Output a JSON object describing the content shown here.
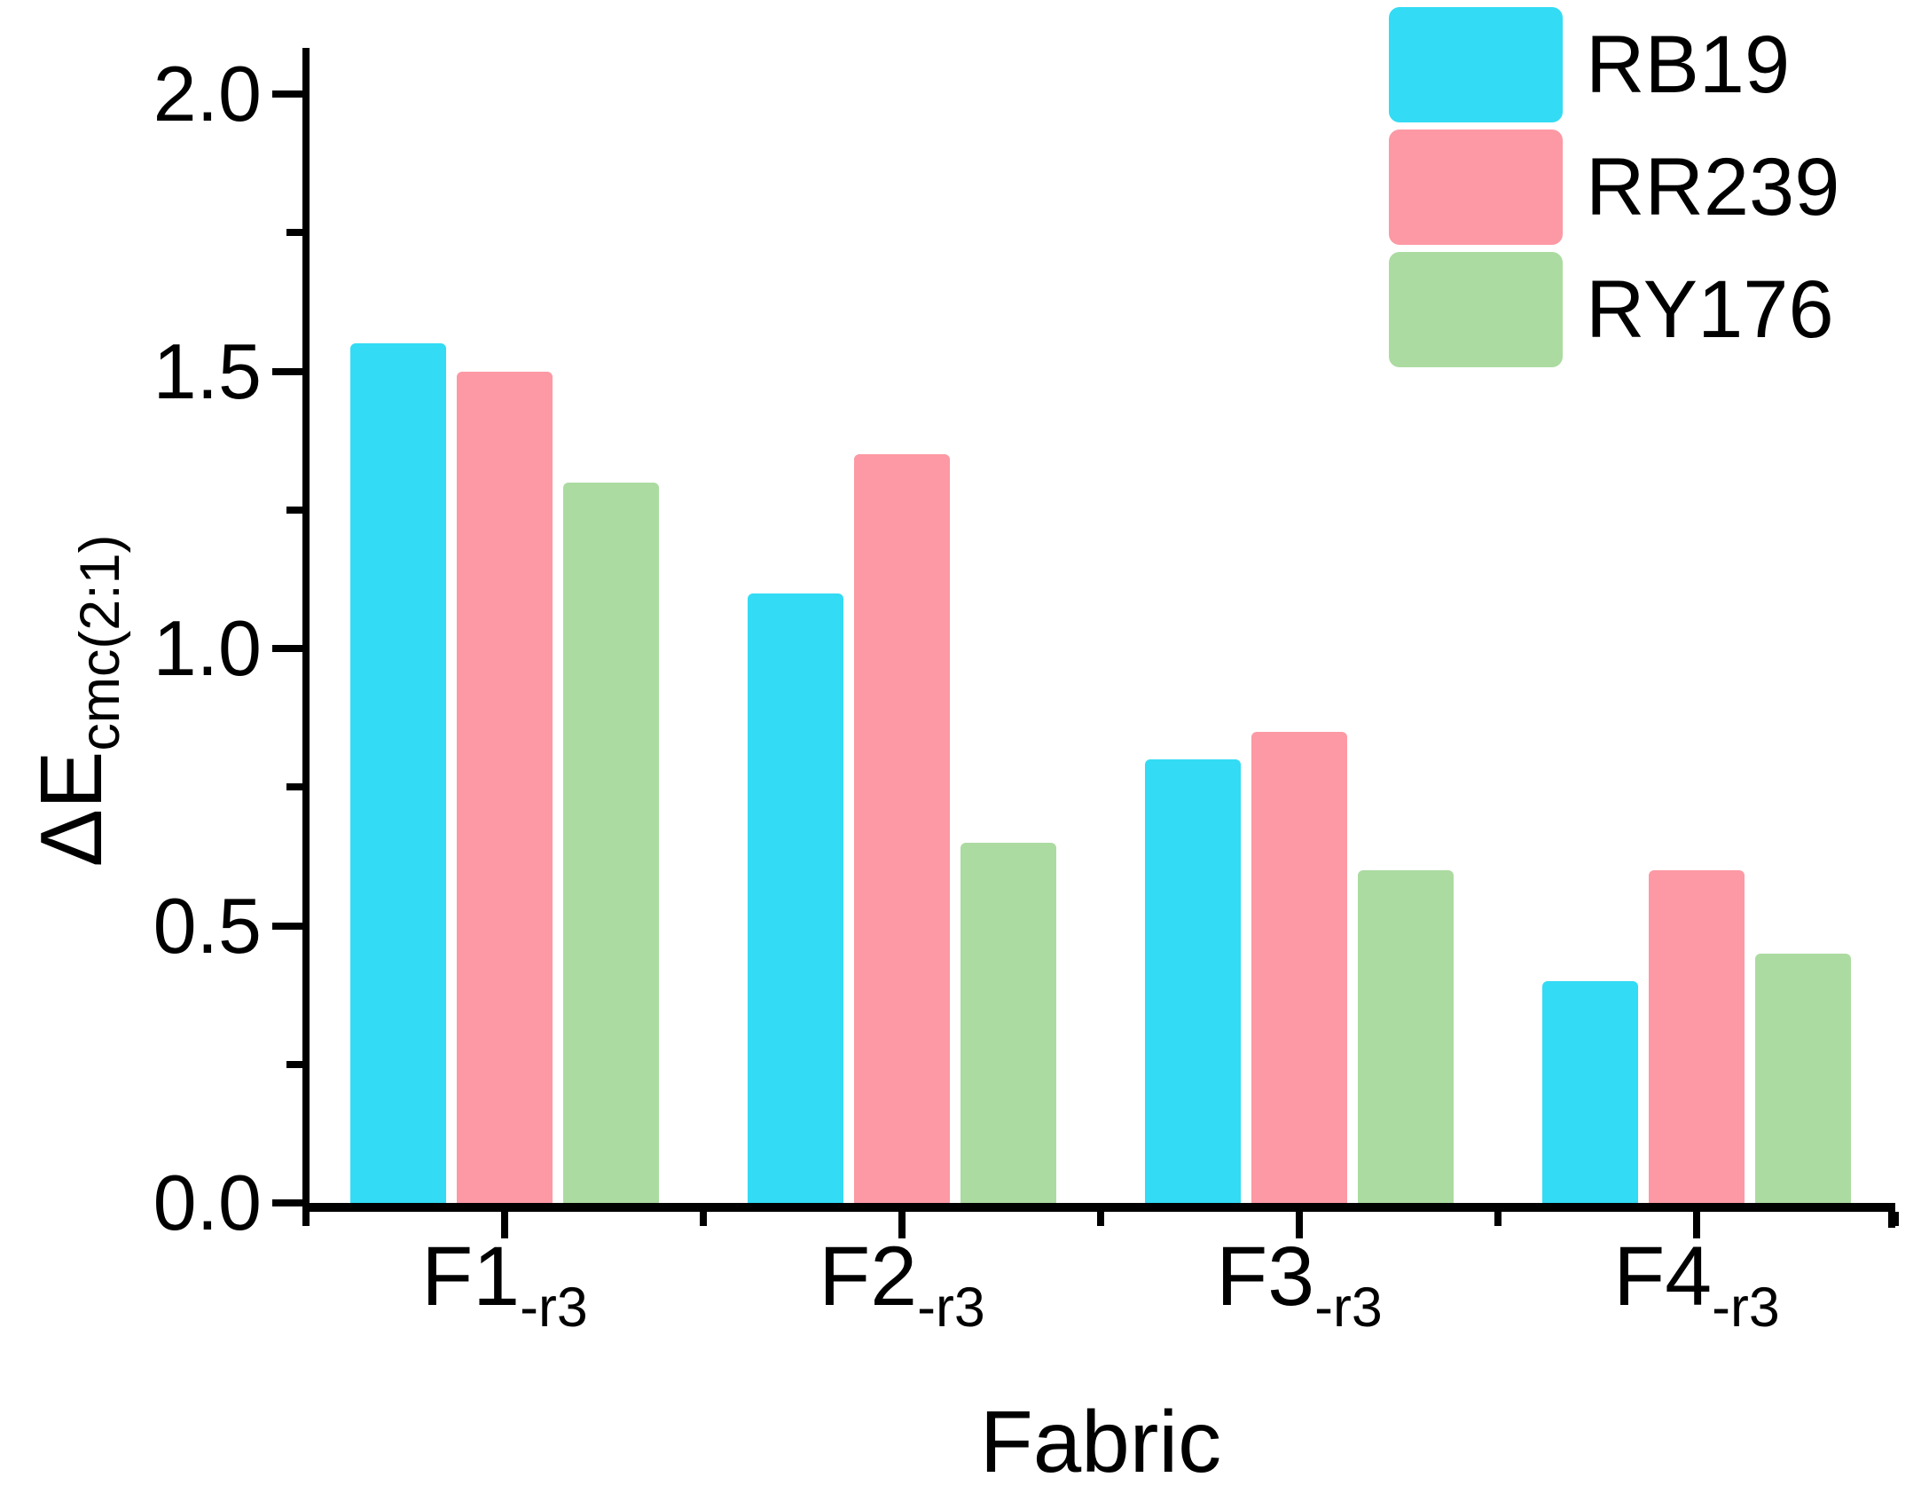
{
  "chart_data": {
    "type": "bar",
    "title": "",
    "xlabel": "Fabric",
    "ylabel_main": "ΔE",
    "ylabel_sub": "cmc(2:1)",
    "categories": [
      {
        "label": "F1",
        "sub": "-r3"
      },
      {
        "label": "F2",
        "sub": "-r3"
      },
      {
        "label": "F3",
        "sub": "-r3"
      },
      {
        "label": "F4",
        "sub": "-r3"
      }
    ],
    "series": [
      {
        "name": "RB19",
        "color": "#33DBF4",
        "values": [
          1.55,
          1.1,
          0.8,
          0.4
        ]
      },
      {
        "name": "RR239",
        "color": "#FC99A4",
        "values": [
          1.5,
          1.35,
          0.85,
          0.6
        ]
      },
      {
        "name": "RY176",
        "color": "#ABDBA0",
        "values": [
          1.3,
          0.65,
          0.6,
          0.45
        ]
      }
    ],
    "y_ticks": [
      {
        "value": 0.0,
        "label": "0.0"
      },
      {
        "value": 0.5,
        "label": "0.5"
      },
      {
        "value": 1.0,
        "label": "1.0"
      },
      {
        "value": 1.5,
        "label": "1.5"
      },
      {
        "value": 2.0,
        "label": "2.0"
      }
    ],
    "y_minor_ticks": [
      0.25,
      0.75,
      1.25,
      1.75
    ],
    "ylim": [
      0.0,
      2.0
    ],
    "grid": false,
    "legend_position": "top-right",
    "axis_color": "#000000"
  }
}
